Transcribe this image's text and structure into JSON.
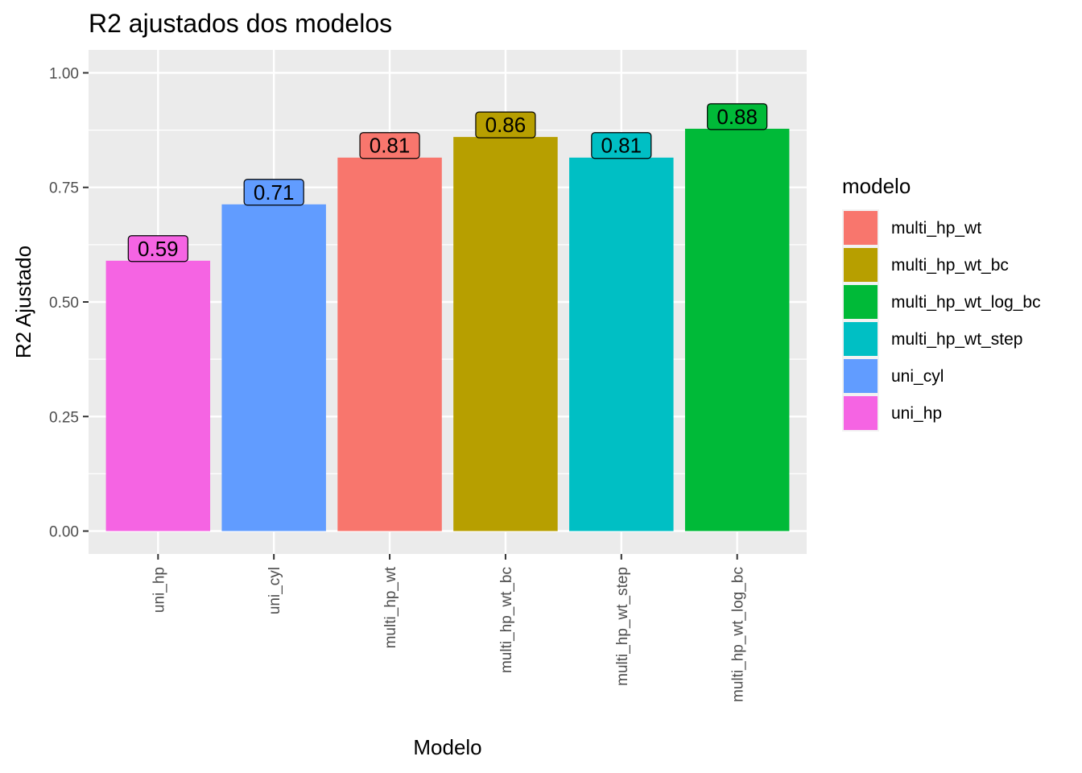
{
  "chart_data": {
    "type": "bar",
    "title": "R2 ajustados dos modelos",
    "xlabel": "Modelo",
    "ylabel": "R2 Ajustado",
    "categories": [
      "uni_hp",
      "uni_cyl",
      "multi_hp_wt",
      "multi_hp_wt_bc",
      "multi_hp_wt_step",
      "multi_hp_wt_log_bc"
    ],
    "values": [
      0.59,
      0.713,
      0.815,
      0.86,
      0.815,
      0.878
    ],
    "data_labels": [
      "0.59",
      "0.71",
      "0.81",
      "0.86",
      "0.81",
      "0.88"
    ],
    "colors": [
      "#F564E3",
      "#619CFF",
      "#F8766D",
      "#B79F00",
      "#00BFC4",
      "#00BA38"
    ],
    "ylim": [
      -0.05,
      1.05
    ],
    "yticks": [
      0,
      0.25,
      0.5,
      0.75,
      1.0
    ],
    "ytick_labels": [
      "0.00",
      "0.25",
      "0.50",
      "0.75",
      "1.00"
    ],
    "grid": true,
    "legend": {
      "title": "modelo",
      "placement": "right",
      "entries": [
        {
          "label": "multi_hp_wt",
          "color": "#F8766D"
        },
        {
          "label": "multi_hp_wt_bc",
          "color": "#B79F00"
        },
        {
          "label": "multi_hp_wt_log_bc",
          "color": "#00BA38"
        },
        {
          "label": "multi_hp_wt_step",
          "color": "#00BFC4"
        },
        {
          "label": "uni_cyl",
          "color": "#619CFF"
        },
        {
          "label": "uni_hp",
          "color": "#F564E3"
        }
      ]
    }
  }
}
